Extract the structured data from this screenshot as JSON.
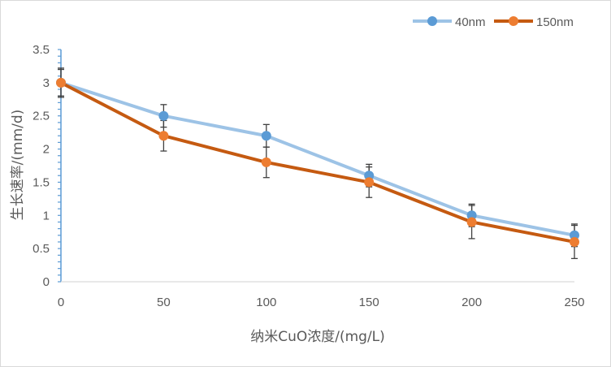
{
  "chart_data": {
    "type": "line",
    "title": "",
    "xlabel": "纳米CuO浓度/(mg/L)",
    "ylabel": "生长速率/(mm/d)",
    "x": [
      0,
      50,
      100,
      150,
      200,
      250
    ],
    "x_tick_labels": [
      "0",
      "50",
      "100",
      "150",
      "200",
      "250"
    ],
    "y_tick_labels": [
      "0",
      "0.5",
      "1",
      "1.5",
      "2",
      "2.5",
      "3",
      "3.5"
    ],
    "ylim": [
      0,
      3.5
    ],
    "y_ticks": [
      0,
      0.5,
      1,
      1.5,
      2,
      2.5,
      3,
      3.5
    ],
    "grid": false,
    "legend_position": "top-right",
    "series": [
      {
        "name": "40nm",
        "color": "#9dc3e6",
        "marker_color": "#5b9bd5",
        "values": [
          3.0,
          2.5,
          2.2,
          1.6,
          1.0,
          0.7
        ],
        "error": [
          0.2,
          0.17,
          0.17,
          0.17,
          0.17,
          0.17
        ]
      },
      {
        "name": "150nm",
        "color": "#c55a11",
        "marker_color": "#ed7d31",
        "values": [
          3.0,
          2.2,
          1.8,
          1.5,
          0.9,
          0.6
        ],
        "error": [
          0.22,
          0.23,
          0.23,
          0.23,
          0.25,
          0.25
        ]
      }
    ]
  }
}
